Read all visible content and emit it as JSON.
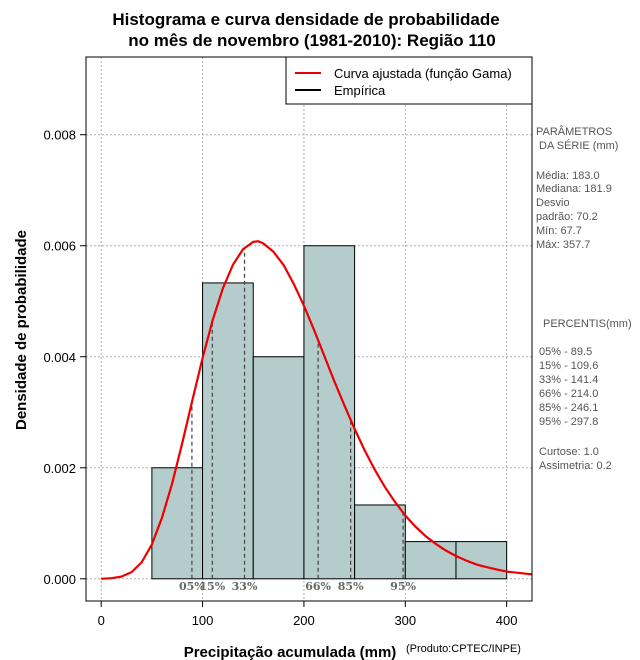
{
  "chart_data": {
    "type": "bar",
    "title_line1": "Histograma e curva densidade de probabilidade",
    "title_line2": "no mês de novembro (1981-2010): Região 110",
    "xlabel": "Precipitação acumulada (mm)",
    "ylabel": "Densidade de probabilidade",
    "credit": "(Produto:CPTEC/INPE)",
    "xlim": [
      -15,
      425
    ],
    "ylim": [
      -0.0004,
      0.0094
    ],
    "x_ticks": [
      0,
      100,
      200,
      300,
      400
    ],
    "y_ticks": [
      0.0,
      0.002,
      0.004,
      0.006,
      0.008
    ],
    "y_tick_labels": [
      "0.000",
      "0.002",
      "0.004",
      "0.006",
      "0.008"
    ],
    "grid": true,
    "bins": [
      {
        "start": 50,
        "end": 100,
        "density": 0.002
      },
      {
        "start": 100,
        "end": 150,
        "density": 0.00533
      },
      {
        "start": 150,
        "end": 200,
        "density": 0.004
      },
      {
        "start": 200,
        "end": 250,
        "density": 0.006
      },
      {
        "start": 250,
        "end": 300,
        "density": 0.00133
      },
      {
        "start": 300,
        "end": 350,
        "density": 0.00067
      },
      {
        "start": 350,
        "end": 400,
        "density": 0.00067
      }
    ],
    "bar_color": "#b4cccc",
    "curve": {
      "name": "Curva ajustada (função Gama)",
      "color": "#ee0000",
      "x": [
        0,
        10,
        20,
        30,
        40,
        50,
        60,
        70,
        80,
        90,
        100,
        110,
        120,
        130,
        140,
        150,
        155,
        160,
        170,
        180,
        190,
        200,
        210,
        220,
        230,
        240,
        250,
        260,
        270,
        280,
        290,
        300,
        310,
        320,
        330,
        340,
        350,
        360,
        370,
        380,
        390,
        400,
        410,
        420,
        425
      ],
      "y": [
        0,
        1e-05,
        4e-05,
        0.00012,
        0.0003,
        0.00062,
        0.0011,
        0.00172,
        0.00245,
        0.00322,
        0.00398,
        0.00466,
        0.00523,
        0.00566,
        0.00594,
        0.00607,
        0.00608,
        0.00604,
        0.00589,
        0.00565,
        0.00531,
        0.00492,
        0.00448,
        0.00402,
        0.00356,
        0.00312,
        0.0027,
        0.00231,
        0.00196,
        0.00165,
        0.00138,
        0.00114,
        0.00094,
        0.00077,
        0.00063,
        0.00051,
        0.00041,
        0.00033,
        0.00026,
        0.00021,
        0.00017,
        0.00013,
        0.00011,
        9e-05,
        8e-05
      ]
    },
    "legend": [
      {
        "label": "Curva ajustada (função Gama)",
        "color": "#ee0000"
      },
      {
        "label": "Empírica",
        "color": "#000000"
      }
    ],
    "percentiles": [
      {
        "name": "05%",
        "value": 89.5
      },
      {
        "name": "15%",
        "value": 109.6
      },
      {
        "name": "33%",
        "value": 141.4
      },
      {
        "name": "66%",
        "value": 214.0
      },
      {
        "name": "85%",
        "value": 246.1
      },
      {
        "name": "95%",
        "value": 297.8
      }
    ]
  },
  "side_panel": {
    "params_title_1": "PARÂMETROS",
    "params_title_2": "DA SÉRIE (mm)",
    "media": "Média:  183.0",
    "mediana": "Mediana:  181.9",
    "desvio_1": "Desvio",
    "desvio_2": "padrão:  70.2",
    "min": "Mín:  67.7",
    "max": "Máx:  357.7",
    "percentis_title": "PERCENTIS(mm)",
    "p05": "05% -   89.5",
    "p15": "15% -   109.6",
    "p33": "33% -   141.4",
    "p66": "66% -   214.0",
    "p85": "85% -   246.1",
    "p95": "95% -   297.8",
    "curtose": "Curtose:  1.0",
    "assimetria": "Assimetria:  0.2"
  }
}
